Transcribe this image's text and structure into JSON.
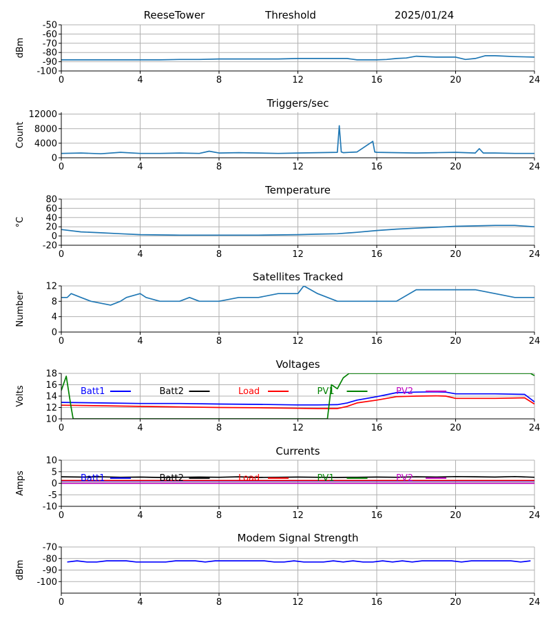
{
  "header": {
    "station": "ReeseTower",
    "first_panel": "Threshold",
    "date": "2025/01/24"
  },
  "colors": {
    "trace": "#1f77b4",
    "grid": "#b0b0b0",
    "Batt1": "#0000ff",
    "Batt2": "#000000",
    "Load": "#ff0000",
    "PV1": "#008000",
    "PV2": "#bf00bf"
  },
  "chart_data": [
    {
      "id": "threshold",
      "type": "line",
      "title": "",
      "xlabel": "",
      "ylabel": "dBm",
      "xlim": [
        0,
        24
      ],
      "ylim": [
        -100,
        -50
      ],
      "xticks": [
        0,
        4,
        8,
        12,
        16,
        20,
        24
      ],
      "yticks": [
        -100,
        -90,
        -80,
        -70,
        -60,
        -50
      ],
      "grid": true,
      "series": [
        {
          "color": "#1f77b4",
          "x": [
            0,
            1,
            2,
            3,
            4,
            5,
            6,
            7,
            8,
            9,
            10,
            11,
            12,
            13,
            14,
            14.5,
            15,
            16,
            16.5,
            17,
            17.5,
            18,
            19,
            20,
            20.5,
            21,
            21.5,
            22,
            23,
            24
          ],
          "y": [
            -88,
            -88,
            -88,
            -88,
            -88,
            -88,
            -87.5,
            -87.5,
            -87,
            -87,
            -87,
            -87,
            -86.5,
            -86.5,
            -86.5,
            -86.5,
            -88,
            -88,
            -87.5,
            -86.5,
            -86,
            -84,
            -85,
            -85,
            -87.5,
            -86.5,
            -83.5,
            -83.5,
            -84.5,
            -85
          ]
        }
      ]
    },
    {
      "id": "triggers",
      "type": "line",
      "title": "Triggers/sec",
      "xlabel": "",
      "ylabel": "Count",
      "xlim": [
        0,
        24
      ],
      "ylim": [
        0,
        12500
      ],
      "xticks": [
        0,
        4,
        8,
        12,
        16,
        20,
        24
      ],
      "yticks": [
        0,
        4000,
        8000,
        12000
      ],
      "grid": true,
      "series": [
        {
          "color": "#1f77b4",
          "x": [
            0,
            1,
            2,
            3,
            4,
            5,
            6,
            7,
            7.5,
            8,
            9,
            10,
            11,
            12,
            13,
            14,
            14.1,
            14.2,
            14.3,
            15,
            15.8,
            15.9,
            16,
            17,
            18,
            19,
            20,
            21,
            21.2,
            21.4,
            22,
            23,
            24
          ],
          "y": [
            1200,
            1300,
            1100,
            1500,
            1200,
            1200,
            1300,
            1200,
            1800,
            1300,
            1400,
            1300,
            1200,
            1300,
            1400,
            1500,
            8800,
            1600,
            1400,
            1600,
            4500,
            1600,
            1500,
            1400,
            1300,
            1400,
            1500,
            1300,
            2500,
            1300,
            1300,
            1200,
            1200
          ]
        }
      ]
    },
    {
      "id": "temperature",
      "type": "line",
      "title": "Temperature",
      "xlabel": "",
      "ylabel": "°C",
      "xlim": [
        0,
        24
      ],
      "ylim": [
        -20,
        80
      ],
      "xticks": [
        0,
        4,
        8,
        12,
        16,
        20,
        24
      ],
      "yticks": [
        -20,
        0,
        20,
        40,
        60,
        80
      ],
      "grid": true,
      "series": [
        {
          "color": "#1f77b4",
          "x": [
            0,
            1,
            2,
            3,
            4,
            6,
            8,
            10,
            12,
            13,
            14,
            15,
            16,
            17,
            18,
            19,
            20,
            21,
            22,
            23,
            24
          ],
          "y": [
            14,
            9,
            7,
            5,
            3,
            2,
            2,
            2,
            3,
            4,
            5,
            8,
            12,
            15,
            17,
            19,
            21,
            22,
            23,
            23,
            20
          ]
        }
      ]
    },
    {
      "id": "satellites",
      "type": "line",
      "title": "Satellites Tracked",
      "xlabel": "",
      "ylabel": "Number",
      "xlim": [
        0,
        24
      ],
      "ylim": [
        0,
        12
      ],
      "xticks": [
        0,
        4,
        8,
        12,
        16,
        20,
        24
      ],
      "yticks": [
        0,
        4,
        8,
        12
      ],
      "grid": true,
      "series": [
        {
          "color": "#1f77b4",
          "x": [
            0,
            0.3,
            0.5,
            1,
            1.5,
            2.5,
            3,
            3.3,
            4,
            4.3,
            5,
            6,
            6.5,
            7,
            8,
            9,
            10,
            11,
            12,
            12.3,
            13,
            14,
            15,
            16,
            17,
            18,
            19,
            20,
            21,
            22,
            23,
            24
          ],
          "y": [
            9,
            9,
            10,
            9,
            8,
            7,
            8,
            9,
            10,
            9,
            8,
            8,
            9,
            8,
            8,
            9,
            9,
            10,
            10,
            12,
            10,
            8,
            8,
            8,
            8,
            11,
            11,
            11,
            11,
            10,
            9,
            9
          ]
        }
      ]
    },
    {
      "id": "voltages",
      "type": "line",
      "title": "Voltages",
      "xlabel": "",
      "ylabel": "Volts",
      "xlim": [
        0,
        24
      ],
      "ylim": [
        10,
        18
      ],
      "xticks": [
        0,
        4,
        8,
        12,
        16,
        20,
        24
      ],
      "yticks": [
        10,
        12,
        14,
        16,
        18
      ],
      "grid": true,
      "legend": "top, single row",
      "series": [
        {
          "name": "Batt1",
          "color": "#0000ff",
          "x": [
            0,
            2,
            4,
            6,
            8,
            10,
            12,
            13,
            14,
            14.5,
            15,
            16,
            17,
            18,
            19,
            19.5,
            20,
            22,
            23.5,
            24
          ],
          "y": [
            12.9,
            12.8,
            12.7,
            12.7,
            12.6,
            12.55,
            12.45,
            12.45,
            12.5,
            12.8,
            13.3,
            13.9,
            14.6,
            14.7,
            14.75,
            14.7,
            14.4,
            14.4,
            14.3,
            13.0
          ]
        },
        {
          "name": "Batt2",
          "color": "#000000",
          "x": [],
          "y": []
        },
        {
          "name": "Load",
          "color": "#ff0000",
          "x": [
            0,
            2,
            4,
            6,
            8,
            10,
            12,
            13,
            14,
            14.5,
            15,
            16,
            17,
            18,
            19,
            19.5,
            20,
            22,
            23.5,
            24
          ],
          "y": [
            12.4,
            12.3,
            12.2,
            12.1,
            12.0,
            11.95,
            11.85,
            11.8,
            11.8,
            12.2,
            12.8,
            13.3,
            13.9,
            14.0,
            14.05,
            14.0,
            13.6,
            13.6,
            13.7,
            12.6
          ]
        },
        {
          "name": "PV1",
          "color": "#008000",
          "x": [
            0,
            0.25,
            0.5,
            0.6,
            13.5,
            13.7,
            14.0,
            14.3,
            14.6,
            23.8,
            24
          ],
          "y": [
            15,
            17.5,
            12,
            10,
            10,
            16,
            15.3,
            17.2,
            18,
            18,
            17.6
          ]
        },
        {
          "name": "PV2",
          "color": "#bf00bf",
          "x": [],
          "y": []
        }
      ]
    },
    {
      "id": "currents",
      "type": "line",
      "title": "Currents",
      "xlabel": "",
      "ylabel": "Amps",
      "xlim": [
        0,
        24
      ],
      "ylim": [
        -10,
        10
      ],
      "xticks": [
        0,
        4,
        8,
        12,
        16,
        20,
        24
      ],
      "yticks": [
        -10,
        -5,
        0,
        5,
        10
      ],
      "grid": true,
      "legend": "top, single row",
      "series": [
        {
          "name": "Batt1",
          "color": "#0000ff",
          "x": [
            0,
            24
          ],
          "y": [
            1.0,
            1.0
          ]
        },
        {
          "name": "Batt2",
          "color": "#000000",
          "x": [
            0,
            1,
            2,
            3,
            4,
            5,
            6,
            7,
            8,
            9,
            10,
            11,
            12,
            13,
            14,
            15,
            16,
            17,
            18,
            19,
            20,
            21,
            22,
            23,
            24
          ],
          "y": [
            2.8,
            2.7,
            2.8,
            2.6,
            2.7,
            2.5,
            2.6,
            2.7,
            2.6,
            2.8,
            2.5,
            2.6,
            2.7,
            2.6,
            2.5,
            2.6,
            2.7,
            2.6,
            2.8,
            2.7,
            2.9,
            2.8,
            2.7,
            2.9,
            2.6
          ]
        },
        {
          "name": "Load",
          "color": "#ff0000",
          "x": [
            0,
            24
          ],
          "y": [
            1.2,
            1.2
          ]
        },
        {
          "name": "PV1",
          "color": "#008000",
          "x": [
            0,
            24
          ],
          "y": [
            0.1,
            0.1
          ]
        },
        {
          "name": "PV2",
          "color": "#bf00bf",
          "x": [
            0,
            24
          ],
          "y": [
            0.0,
            0.0
          ]
        }
      ]
    },
    {
      "id": "modem",
      "type": "line",
      "title": "Modem Signal Strength",
      "xlabel": "",
      "ylabel": "dBm",
      "xlim": [
        0,
        24
      ],
      "ylim": [
        -110,
        -70
      ],
      "xticks": [
        0,
        4,
        8,
        12,
        16,
        20,
        24
      ],
      "yticks": [
        -100,
        -90,
        -80,
        -70
      ],
      "grid": true,
      "series": [
        {
          "color": "#0000ff",
          "x": [
            0.3,
            0.8,
            1.3,
            1.8,
            2.3,
            2.8,
            3.3,
            3.8,
            4.3,
            4.8,
            5.3,
            5.8,
            6.3,
            6.8,
            7.3,
            7.8,
            8.3,
            8.8,
            9.3,
            9.8,
            10.3,
            10.8,
            11.3,
            11.8,
            12.3,
            12.8,
            13.3,
            13.8,
            14.3,
            14.8,
            15.3,
            15.8,
            16.3,
            16.8,
            17.3,
            17.8,
            18.3,
            18.8,
            19.3,
            19.8,
            20.3,
            20.8,
            21.3,
            21.8,
            22.3,
            22.8,
            23.3,
            23.8
          ],
          "y": [
            -83,
            -82,
            -83,
            -83,
            -82,
            -82,
            -82,
            -83,
            -83,
            -83,
            -83,
            -82,
            -82,
            -82,
            -83,
            -82,
            -82,
            -82,
            -82,
            -82,
            -82,
            -83,
            -83,
            -82,
            -83,
            -83,
            -83,
            -82,
            -83,
            -82,
            -83,
            -83,
            -82,
            -83,
            -82,
            -83,
            -82,
            -82,
            -82,
            -82,
            -83,
            -82,
            -82,
            -82,
            -82,
            -82,
            -83,
            -82
          ]
        }
      ]
    }
  ]
}
